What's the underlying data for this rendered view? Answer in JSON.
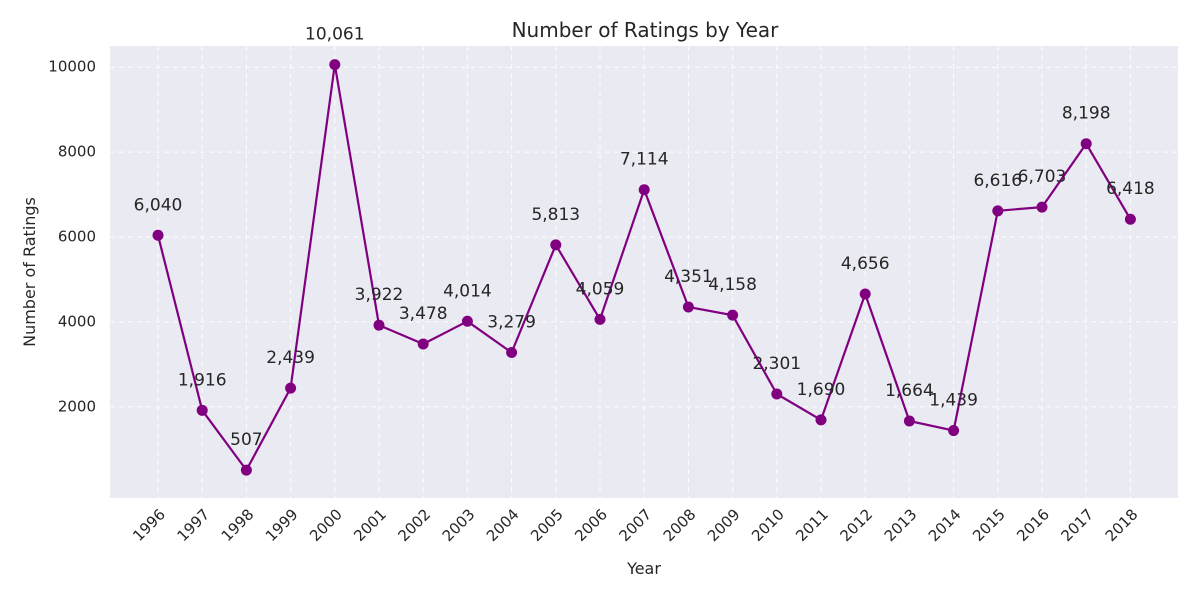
{
  "chart_data": {
    "type": "line",
    "title": "Number of Ratings by Year",
    "xlabel": "Year",
    "ylabel": "Number of Ratings",
    "categories": [
      "1996",
      "1997",
      "1998",
      "1999",
      "2000",
      "2001",
      "2002",
      "2003",
      "2004",
      "2005",
      "2006",
      "2007",
      "2008",
      "2009",
      "2010",
      "2011",
      "2012",
      "2013",
      "2014",
      "2015",
      "2016",
      "2017",
      "2018"
    ],
    "values": [
      6040,
      1916,
      507,
      2439,
      10061,
      3922,
      3478,
      4014,
      3279,
      5813,
      4059,
      7114,
      4351,
      4158,
      2301,
      1690,
      4656,
      1664,
      1439,
      6616,
      6703,
      8198,
      6418
    ],
    "data_labels": [
      "6,040",
      "1,916",
      "507",
      "2,439",
      "10,061",
      "3,922",
      "3,478",
      "4,014",
      "3,279",
      "5,813",
      "4,059",
      "7,114",
      "4,351",
      "4,158",
      "2,301",
      "1,690",
      "4,656",
      "1,664",
      "1,439",
      "6,616",
      "6,703",
      "8,198",
      "6,418"
    ],
    "yticks": [
      2000,
      4000,
      6000,
      8000,
      10000
    ],
    "ylim": [
      -150,
      10500
    ],
    "grid": true,
    "line_color": "#800080",
    "plot_background": "#eaeaf2",
    "grid_color": "#ffffff"
  }
}
